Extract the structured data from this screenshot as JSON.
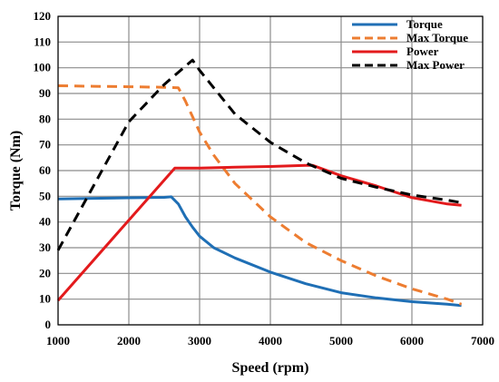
{
  "chart_data": {
    "type": "line",
    "title": "",
    "xlabel": "Speed (rpm)",
    "ylabel": "Torque (Nm)",
    "xlim": [
      1000,
      7000
    ],
    "ylim": [
      0,
      120
    ],
    "xticks": [
      1000,
      2000,
      3000,
      4000,
      5000,
      6000,
      7000
    ],
    "yticks": [
      0,
      10,
      20,
      30,
      40,
      50,
      60,
      70,
      80,
      90,
      100,
      110,
      120
    ],
    "grid": true,
    "legend_position": "top-right",
    "series": [
      {
        "name": "Torque",
        "color": "#1f6fb5",
        "dash": "solid",
        "x": [
          1000,
          1500,
          2000,
          2500,
          2600,
          2700,
          2800,
          2900,
          3000,
          3200,
          3500,
          4000,
          4500,
          5000,
          5500,
          6000,
          6500,
          6700
        ],
        "y": [
          49,
          49.2,
          49.4,
          49.6,
          49.8,
          47,
          42,
          38,
          34.5,
          30,
          26,
          20.5,
          16,
          12.5,
          10.5,
          9,
          8,
          7.5
        ]
      },
      {
        "name": "Max Torque",
        "color": "#ed7d31",
        "dash": "dashed",
        "x": [
          1000,
          1500,
          2000,
          2500,
          2700,
          2800,
          2900,
          3000,
          3200,
          3500,
          4000,
          4500,
          5000,
          5500,
          6000,
          6500,
          6700
        ],
        "y": [
          93,
          92.8,
          92.6,
          92.4,
          92.2,
          87,
          81,
          75,
          66,
          55,
          42,
          32,
          25,
          19,
          14,
          10,
          8
        ]
      },
      {
        "name": "Power",
        "color": "#e31a1c",
        "dash": "solid",
        "x": [
          1000,
          2650,
          3000,
          3500,
          4000,
          4500,
          4600,
          5000,
          5500,
          6000,
          6500,
          6700
        ],
        "y": [
          9.5,
          61,
          61,
          61.3,
          61.6,
          62,
          62,
          58,
          54,
          49.5,
          47,
          46.5
        ]
      },
      {
        "name": "Max Power",
        "color": "#000000",
        "dash": "dashed",
        "x": [
          1000,
          1500,
          2000,
          2500,
          2900,
          3000,
          3500,
          4000,
          4500,
          5000,
          5500,
          6000,
          6500,
          6700
        ],
        "y": [
          29,
          54,
          79,
          93.5,
          103,
          99,
          82,
          71,
          63,
          57,
          53.5,
          50.5,
          48.5,
          47.5
        ]
      }
    ]
  }
}
